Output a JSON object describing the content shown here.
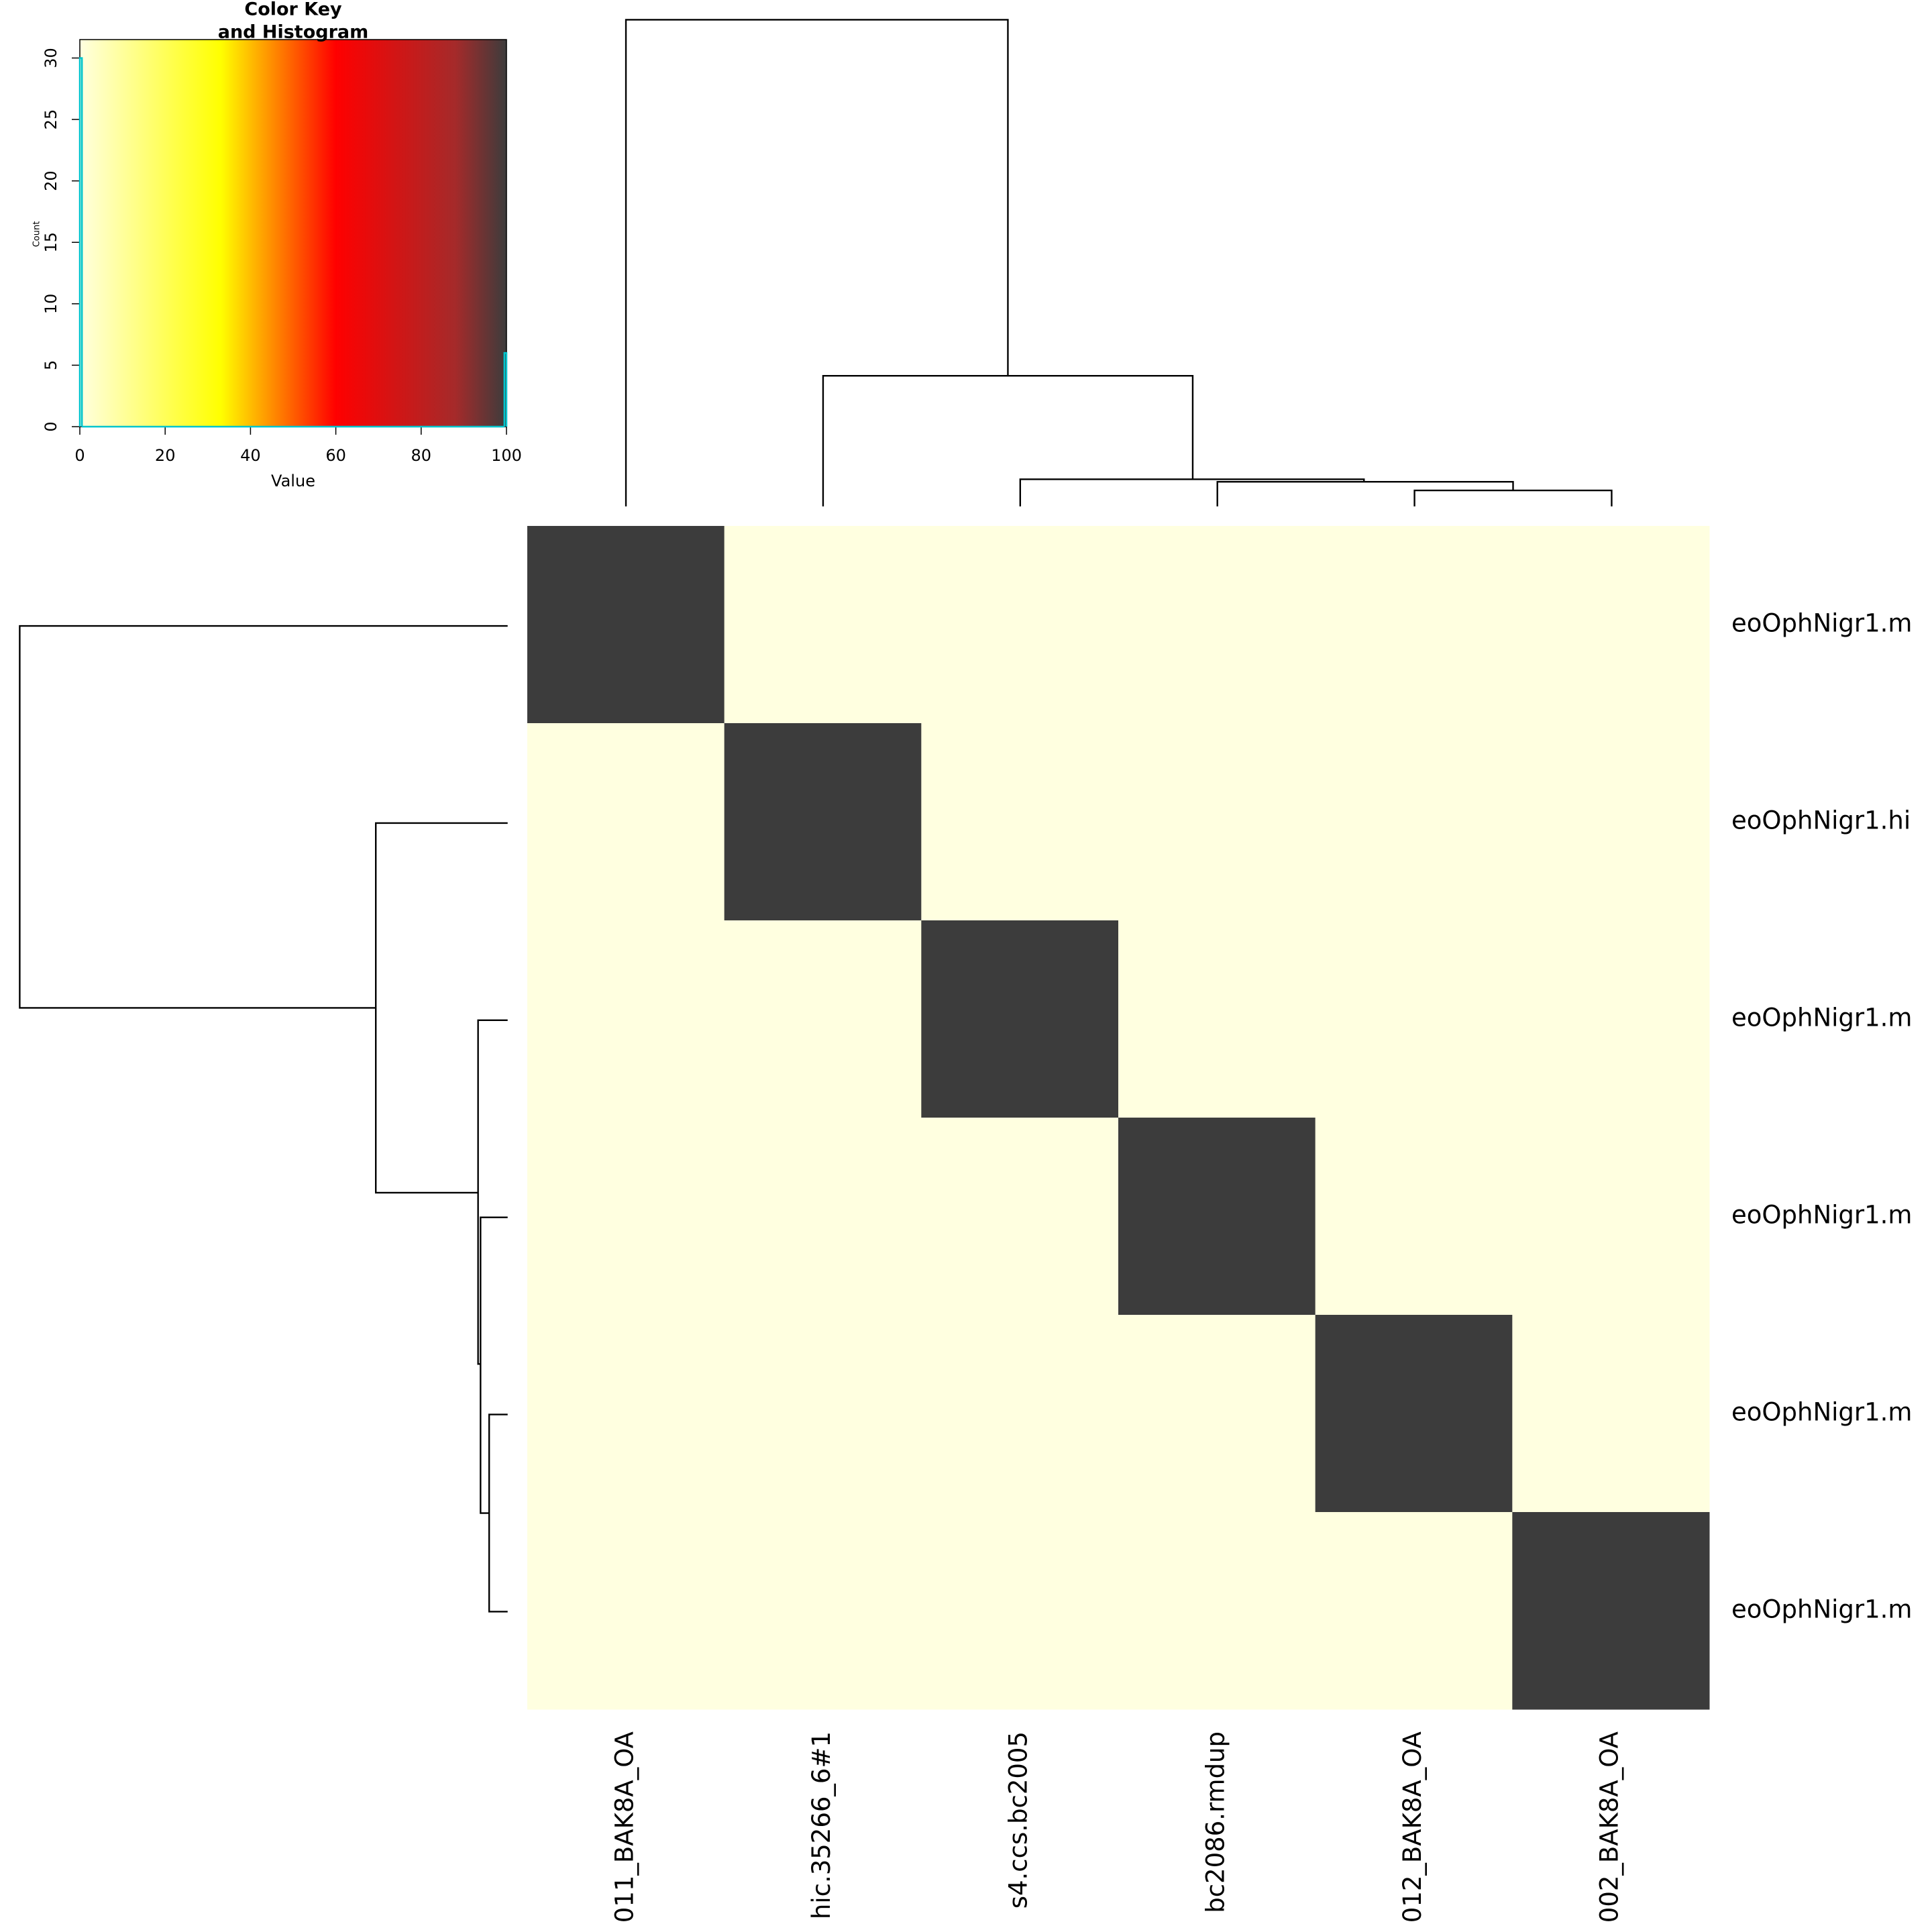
{
  "chart_data": {
    "type": "heatmap",
    "rows": [
      "eoOphNigr1.m",
      "eoOphNigr1.hi",
      "eoOphNigr1.m",
      "eoOphNigr1.m",
      "eoOphNigr1.m",
      "eoOphNigr1.m"
    ],
    "columns": [
      "011_BAK8A_OA",
      "hic.35266_6#1",
      "s4.ccs.bc2005",
      "bc2086.rmdup",
      "012_BAK8A_OA",
      "002_BAK8A_OA"
    ],
    "values": [
      [
        100,
        0,
        0,
        0,
        0,
        0
      ],
      [
        0,
        100,
        0,
        0,
        0,
        0
      ],
      [
        0,
        0,
        100,
        0,
        0,
        0
      ],
      [
        0,
        0,
        0,
        100,
        0,
        0
      ],
      [
        0,
        0,
        0,
        0,
        100,
        0
      ],
      [
        0,
        0,
        0,
        0,
        0,
        100
      ]
    ],
    "color_stops": [
      {
        "value": 0,
        "color": "#ffffe0"
      },
      {
        "value": 33,
        "color": "#ffff00"
      },
      {
        "value": 60,
        "color": "#ff0000"
      },
      {
        "value": 88,
        "color": "#a52a2a"
      },
      {
        "value": 100,
        "color": "#3c3c3c"
      }
    ],
    "key": {
      "title": [
        "Color Key",
        "and Histogram"
      ],
      "xlabel": "Value",
      "ylabel": "Count",
      "xlim": [
        0,
        100
      ],
      "xticks": [
        0,
        20,
        40,
        60,
        80,
        100
      ],
      "ylim": [
        0,
        31.5
      ],
      "yticks": [
        0,
        5,
        10,
        15,
        20,
        25,
        30
      ],
      "bins": [
        0,
        0.5,
        99.5,
        100
      ],
      "counts": [
        30,
        0,
        6
      ],
      "hist_color": "#00c5cd"
    }
  }
}
